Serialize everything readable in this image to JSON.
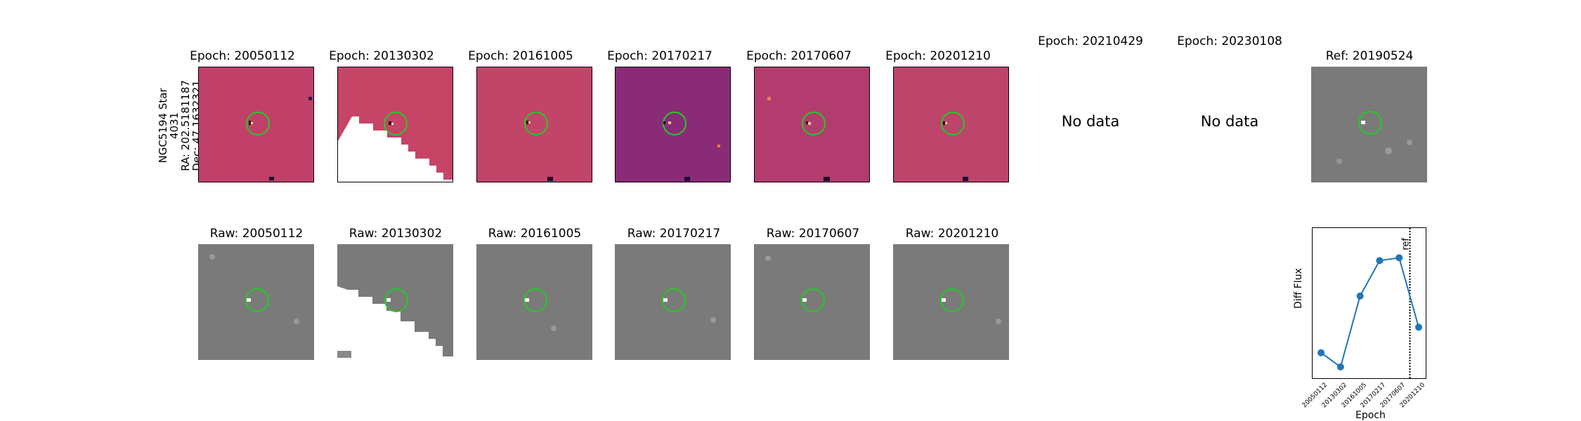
{
  "star": {
    "name": "NGC5194 Star 4031",
    "ra": "RA: 202.5181187",
    "dec": "Dec: 47.1632321"
  },
  "diff_titles": [
    "Epoch: 20050112",
    "Epoch: 20130302",
    "Epoch: 20161005",
    "Epoch: 20170217",
    "Epoch: 20170607",
    "Epoch: 20201210",
    "Epoch: 20210429",
    "Epoch: 20230108"
  ],
  "ref_title": "Ref: 20190524",
  "no_data": [
    "No data",
    "No data"
  ],
  "raw_titles": [
    "Raw: 20050112",
    "Raw: 20130302",
    "Raw: 20161005",
    "Raw: 20170217",
    "Raw: 20170607",
    "Raw: 20201210"
  ],
  "chart_data": {
    "type": "line",
    "categories": [
      "20050112",
      "20130302",
      "20161005",
      "20170217",
      "20170607",
      "20201210"
    ],
    "values": [
      0.15,
      0.05,
      0.55,
      0.8,
      0.82,
      0.33
    ],
    "ylabel": "Diff Flux",
    "xlabel": "Epoch",
    "ref_label": "ref",
    "series_color": "#1f77b4"
  }
}
